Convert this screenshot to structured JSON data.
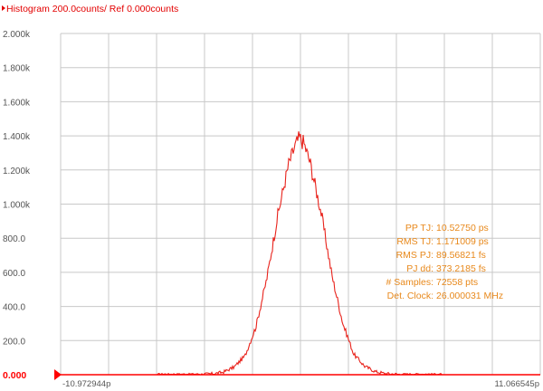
{
  "window": {
    "title": "Histogram 200.0counts/ Ref 0.000counts"
  },
  "colors": {
    "trace": "#e8221b",
    "title": "#e30000",
    "ref_marker": "#ff0000",
    "grid": "#c8c8c8",
    "annotation": "#e8891c",
    "tick_text": "#555555"
  },
  "chart_data": {
    "type": "line",
    "title": "Histogram 200.0counts/ Ref 0.000counts",
    "xlabel": "",
    "ylabel": "",
    "ylim": [
      0,
      2000
    ],
    "xlim_labels": [
      "-10.972944p",
      "11.066545p"
    ],
    "y_ticks": [
      {
        "value": 0,
        "label": "0.000"
      },
      {
        "value": 200,
        "label": "200.0"
      },
      {
        "value": 400,
        "label": "400.0"
      },
      {
        "value": 600,
        "label": "600.0"
      },
      {
        "value": 800,
        "label": "800.0"
      },
      {
        "value": 1000,
        "label": "1.000k"
      },
      {
        "value": 1200,
        "label": "1.200k"
      },
      {
        "value": 1400,
        "label": "1.400k"
      },
      {
        "value": 1600,
        "label": "1.600k"
      },
      {
        "value": 1800,
        "label": "1.800k"
      },
      {
        "value": 2000,
        "label": "2.000k"
      }
    ],
    "grid": true,
    "x_divisions": 10,
    "series": [
      {
        "x": [
          -10.97,
          -5.0,
          -4.0,
          -3.5,
          -3.0,
          -2.5,
          -2.0,
          -1.5,
          -1.0,
          -0.5,
          -0.2,
          0.0,
          0.2,
          0.5,
          1.0,
          1.5,
          2.0,
          2.5,
          3.0,
          3.5,
          4.0,
          5.0,
          11.07
        ],
        "values": [
          0,
          0,
          5,
          15,
          45,
          110,
          280,
          560,
          930,
          1230,
          1340,
          1390,
          1360,
          1240,
          950,
          580,
          300,
          120,
          50,
          18,
          6,
          0,
          0
        ]
      }
    ],
    "annotations": [
      {
        "label": "PP TJ:",
        "value": "10.52750 ps"
      },
      {
        "label": "RMS TJ:",
        "value": "1.171009 ps"
      },
      {
        "label": "RMS PJ:",
        "value": "89.56821 fs"
      },
      {
        "label": "PJ dd:",
        "value": "373.2185 fs"
      },
      {
        "label": "# Samples:",
        "value": "72558 pts"
      },
      {
        "label": "Det. Clock:",
        "value": "26.000031 MHz"
      }
    ]
  }
}
